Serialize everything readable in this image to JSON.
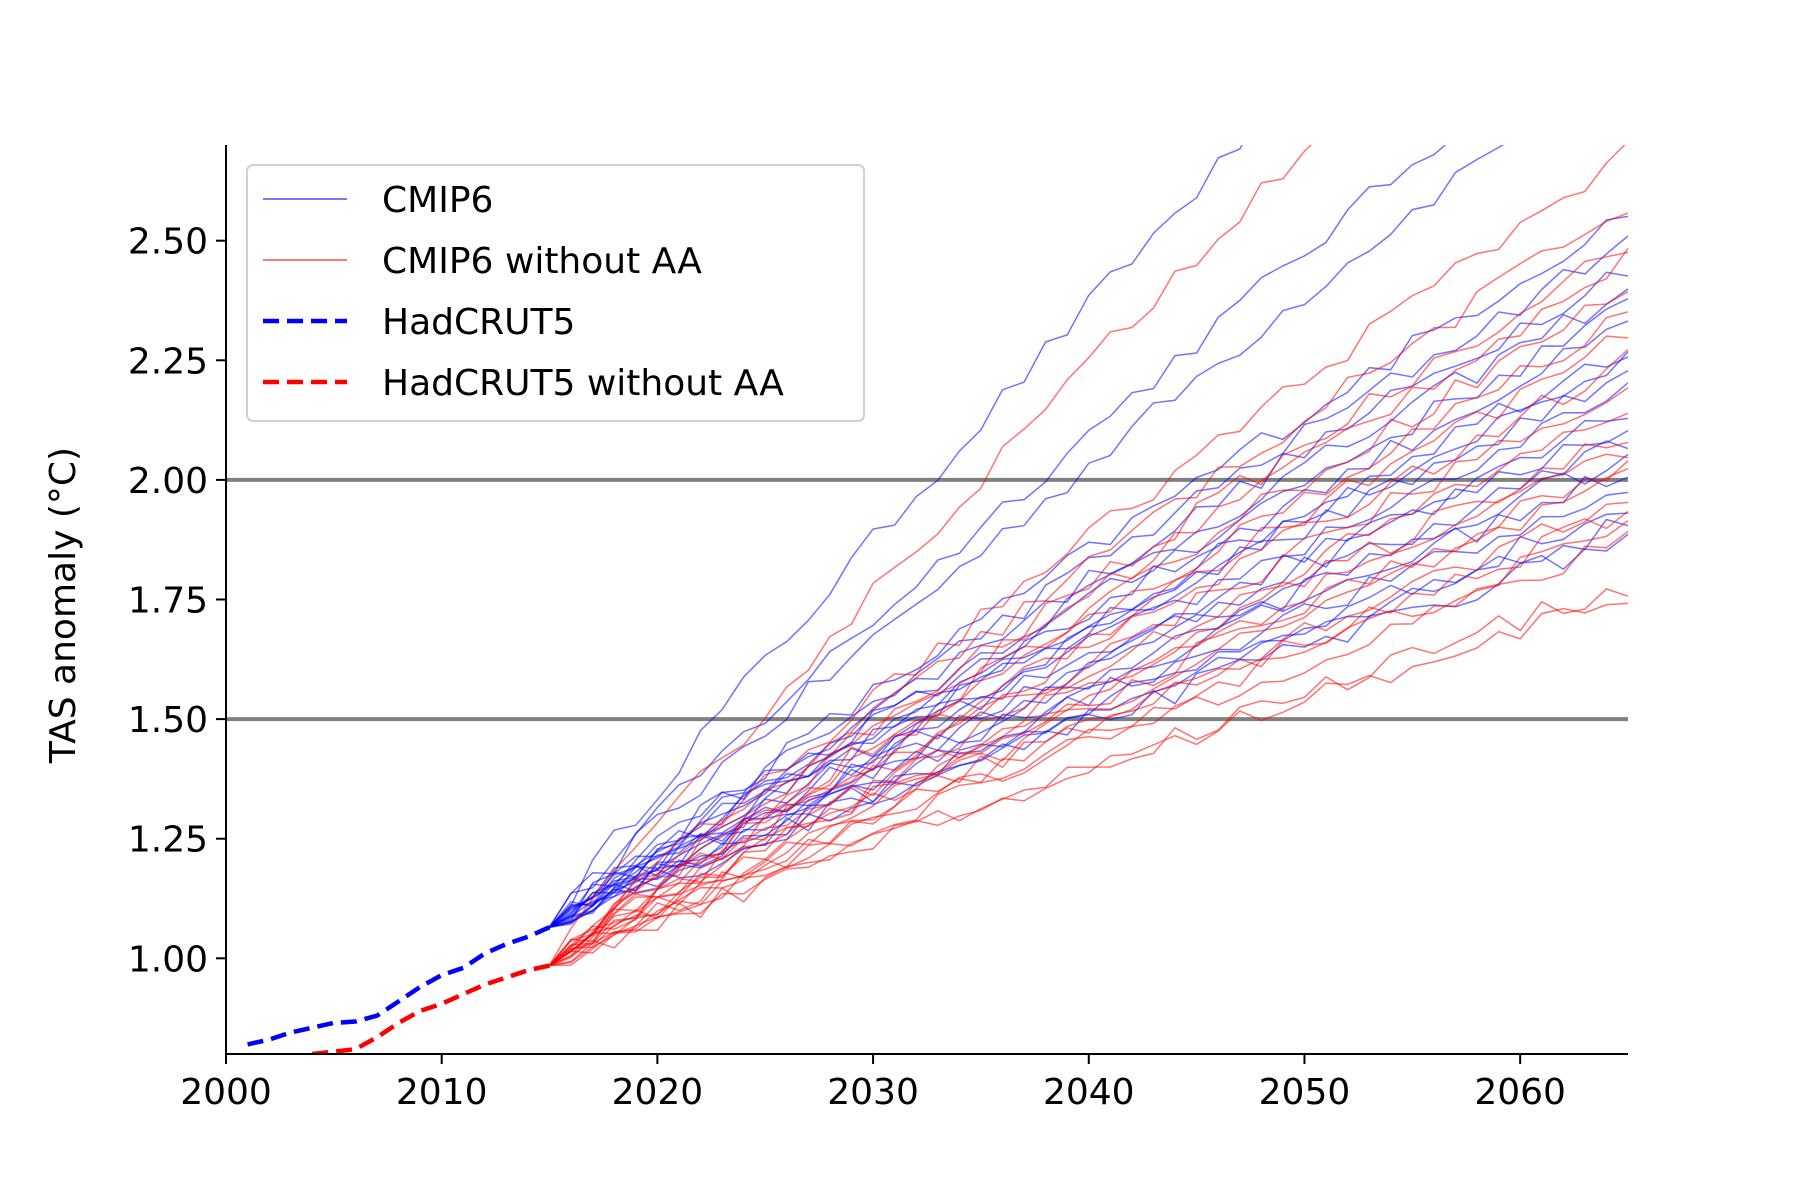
{
  "chart_data": {
    "type": "line",
    "title": "",
    "xlabel": "",
    "ylabel": "TAS anomaly (°C)",
    "xlim": [
      2000,
      2065
    ],
    "ylim": [
      0.8,
      2.7
    ],
    "xticks": [
      2000,
      2010,
      2020,
      2030,
      2040,
      2050,
      2060
    ],
    "yticks": [
      1.0,
      1.25,
      1.5,
      1.75,
      2.0,
      2.25,
      2.5
    ],
    "ytick_labels": [
      "1.00",
      "1.25",
      "1.50",
      "1.75",
      "2.00",
      "2.25",
      "2.50"
    ],
    "hlines": [
      1.5,
      2.0
    ],
    "grid": false,
    "legend_position": "top-left",
    "colors": {
      "CMIP6": "#0000ff",
      "CMIP6 without AA": "#ff0000",
      "hline": "#808080"
    },
    "legend": [
      {
        "label": "CMIP6",
        "color": "#0000ff",
        "style": "thin"
      },
      {
        "label": "CMIP6 without AA",
        "color": "#ff0000",
        "style": "thin"
      },
      {
        "label": "HadCRUT5",
        "color": "#0000ff",
        "style": "dashed"
      },
      {
        "label": "HadCRUT5 without AA",
        "color": "#ff0000",
        "style": "dashed"
      }
    ],
    "observations": [
      {
        "name": "HadCRUT5",
        "color": "#0000ff",
        "x": [
          2001,
          2002,
          2003,
          2004,
          2005,
          2006,
          2007,
          2008,
          2009,
          2010,
          2011,
          2012,
          2013,
          2014,
          2015
        ],
        "y": [
          0.82,
          0.83,
          0.845,
          0.855,
          0.865,
          0.868,
          0.88,
          0.91,
          0.94,
          0.965,
          0.98,
          1.01,
          1.03,
          1.045,
          1.065
        ]
      },
      {
        "name": "HadCRUT5 without AA",
        "color": "#ff0000",
        "x": [
          2004,
          2005,
          2006,
          2007,
          2008,
          2009,
          2010,
          2011,
          2012,
          2013,
          2014,
          2015
        ],
        "y": [
          0.8,
          0.805,
          0.81,
          0.835,
          0.865,
          0.89,
          0.905,
          0.925,
          0.945,
          0.96,
          0.975,
          0.985
        ]
      }
    ],
    "ensembles": [
      {
        "name": "CMIP6",
        "color": "#0000ff",
        "start": [
          2015,
          1.065
        ],
        "trajectories": [
          {
            "end_year": 2047,
            "end_value": 2.7
          },
          {
            "end_year": 2059,
            "end_value": 2.7
          },
          {
            "end_year": 2056,
            "end_value": 2.7
          },
          {
            "end_year": 2065,
            "end_value": 2.56
          },
          {
            "end_year": 2065,
            "end_value": 2.5
          },
          {
            "end_year": 2065,
            "end_value": 2.45
          },
          {
            "end_year": 2065,
            "end_value": 2.4
          },
          {
            "end_year": 2065,
            "end_value": 2.36
          },
          {
            "end_year": 2065,
            "end_value": 2.32
          },
          {
            "end_year": 2065,
            "end_value": 2.28
          },
          {
            "end_year": 2065,
            "end_value": 2.25
          },
          {
            "end_year": 2065,
            "end_value": 2.22
          },
          {
            "end_year": 2065,
            "end_value": 2.18
          },
          {
            "end_year": 2065,
            "end_value": 2.15
          },
          {
            "end_year": 2065,
            "end_value": 2.12
          },
          {
            "end_year": 2065,
            "end_value": 2.08
          },
          {
            "end_year": 2065,
            "end_value": 2.05
          },
          {
            "end_year": 2065,
            "end_value": 2.02
          },
          {
            "end_year": 2065,
            "end_value": 1.98
          },
          {
            "end_year": 2065,
            "end_value": 1.94
          },
          {
            "end_year": 2065,
            "end_value": 1.91
          },
          {
            "end_year": 2065,
            "end_value": 1.88
          }
        ]
      },
      {
        "name": "CMIP6 without AA",
        "color": "#ff0000",
        "start": [
          2015,
          0.985
        ],
        "trajectories": [
          {
            "end_year": 2050,
            "end_value": 2.7
          },
          {
            "end_year": 2065,
            "end_value": 2.69
          },
          {
            "end_year": 2065,
            "end_value": 2.58
          },
          {
            "end_year": 2065,
            "end_value": 2.5
          },
          {
            "end_year": 2065,
            "end_value": 2.46
          },
          {
            "end_year": 2065,
            "end_value": 2.4
          },
          {
            "end_year": 2065,
            "end_value": 2.35
          },
          {
            "end_year": 2065,
            "end_value": 2.3
          },
          {
            "end_year": 2065,
            "end_value": 2.25
          },
          {
            "end_year": 2065,
            "end_value": 2.2
          },
          {
            "end_year": 2065,
            "end_value": 2.15
          },
          {
            "end_year": 2065,
            "end_value": 2.1
          },
          {
            "end_year": 2065,
            "end_value": 2.07
          },
          {
            "end_year": 2065,
            "end_value": 2.03
          },
          {
            "end_year": 2065,
            "end_value": 2.0
          },
          {
            "end_year": 2065,
            "end_value": 1.96
          },
          {
            "end_year": 2065,
            "end_value": 1.93
          },
          {
            "end_year": 2065,
            "end_value": 1.9
          },
          {
            "end_year": 2065,
            "end_value": 1.87
          },
          {
            "end_year": 2065,
            "end_value": 1.78
          },
          {
            "end_year": 2065,
            "end_value": 1.76
          }
        ]
      }
    ]
  }
}
